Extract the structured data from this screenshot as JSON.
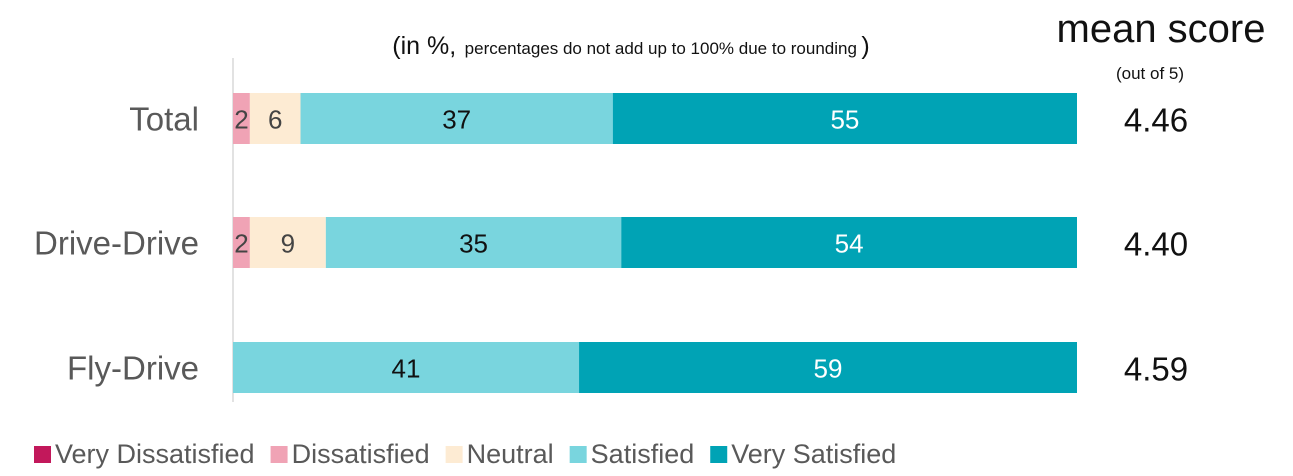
{
  "chart_data": {
    "type": "bar",
    "orientation": "horizontal",
    "stacked": true,
    "subtitle_main": "(in %,",
    "subtitle_note": "percentages do not add up to 100% due to rounding",
    "subtitle_close": ")",
    "categories": [
      "Total",
      "Drive-Drive",
      "Fly-Drive"
    ],
    "series": [
      {
        "name": "Very Dissatisfied",
        "color": "#c2185b",
        "values": [
          0,
          0,
          0
        ]
      },
      {
        "name": "Dissatisfied",
        "color": "#f0a3b5",
        "values": [
          2,
          2,
          0
        ]
      },
      {
        "name": "Neutral",
        "color": "#fdebd3",
        "values": [
          6,
          9,
          0
        ]
      },
      {
        "name": "Satisfied",
        "color": "#79d5de",
        "values": [
          37,
          35,
          41
        ]
      },
      {
        "name": "Very Satisfied",
        "color": "#00a3b5",
        "values": [
          55,
          54,
          59
        ]
      }
    ],
    "data_labels": [
      [
        "",
        "2",
        "6",
        "37",
        "55"
      ],
      [
        "",
        "2",
        "9",
        "35",
        "54"
      ],
      [
        "",
        "",
        "",
        "41",
        "59"
      ]
    ],
    "label_colors": [
      "#ffffff",
      "#444444",
      "#444444",
      "#111111",
      "#ffffff"
    ],
    "mean_score": {
      "title": "mean score",
      "note": "(out of 5)",
      "values": [
        "4.46",
        "4.40",
        "4.59"
      ]
    },
    "xlim": [
      0,
      100
    ],
    "grid": false,
    "legend_position": "bottom"
  }
}
